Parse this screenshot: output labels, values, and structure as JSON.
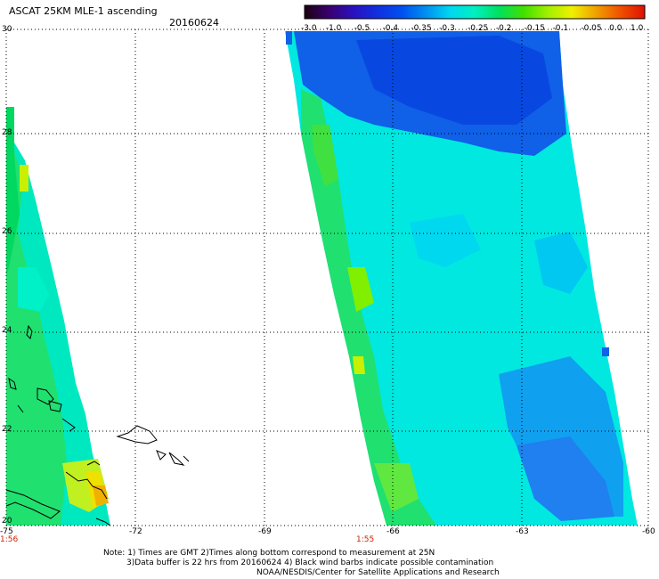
{
  "header": {
    "title": "ASCAT 25KM MLE-1 ascending",
    "date": "20160624"
  },
  "colorbar": {
    "labels": [
      "-3.0",
      "-1.0",
      "-0.5",
      "-0.4",
      "-0.35",
      "-0.3",
      "-0.25",
      "-0.2",
      "-0.15",
      "-0.1",
      "-0.05",
      "0.0",
      "1.0"
    ],
    "colors": [
      "#1a0010",
      "#3a006e",
      "#2a10c0",
      "#1030e0",
      "#0050f0",
      "#0090f0",
      "#00d8f0",
      "#00f0c0",
      "#00e060",
      "#40e000",
      "#a0f000",
      "#f0f000",
      "#f0a000",
      "#f05000",
      "#e01000"
    ]
  },
  "axes": {
    "lat_labels": [
      "30",
      "28",
      "26",
      "24",
      "22",
      "20"
    ],
    "lon_labels": [
      "-75",
      "-72",
      "-69",
      "-66",
      "-63",
      "-60"
    ]
  },
  "times": {
    "left": "1:56",
    "mid": "1:55"
  },
  "notes": {
    "line1": "Note: 1) Times are GMT 2)Times along bottom correspond to measurement at 25N",
    "line2": "3)Data buffer is 22 hrs from 20160624 4) Black wind barbs indicate possible contamination",
    "line3": "NOAA/NESDIS/Center for Satellite Applications and Research"
  }
}
